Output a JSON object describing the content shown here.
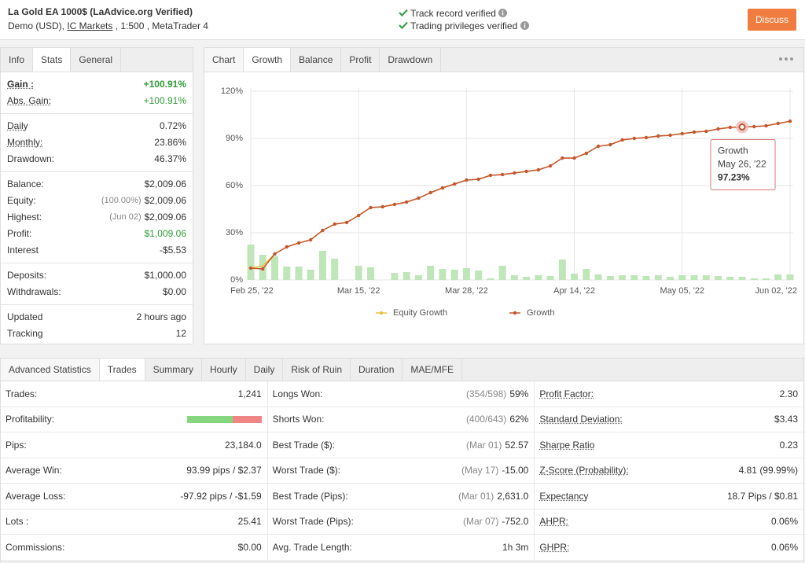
{
  "header": {
    "title": "La Gold EA 1000$ (LaAdvice.org Verified)",
    "account": [
      "Demo (USD), ",
      "IC Markets",
      " , 1:500 , MetaTrader 4"
    ],
    "verifications": [
      "Track record verified",
      "Trading privileges verified"
    ],
    "button": "Discuss"
  },
  "info_panel": {
    "tabs": [
      "Info",
      "Stats",
      "General"
    ],
    "active_tab": 1,
    "groups": [
      [
        {
          "label": "Gain :",
          "value": "+100.91%",
          "underlined": true,
          "bold": true,
          "color": "#2e9b35"
        },
        {
          "label": "Abs. Gain:",
          "value": "+100.91%",
          "underlined": true,
          "color": "#2e9b35"
        }
      ],
      [
        {
          "label": "Daily",
          "value": "0.72%",
          "underlined": true
        },
        {
          "label": "Monthly:",
          "value": "23.86%",
          "underlined": true
        },
        {
          "label": "Drawdown:",
          "value": "46.37%"
        }
      ],
      [
        {
          "label": "Balance:",
          "value": "$2,009.06"
        },
        {
          "label": "Equity:",
          "note": "(100.00%)",
          "value": "$2,009.06"
        },
        {
          "label": "Highest:",
          "note": "(Jun 02)",
          "value": "$2,009.06"
        },
        {
          "label": "Profit:",
          "value": "$1,009.06",
          "color": "#2e9b35"
        },
        {
          "label": "Interest",
          "value": "-$5.53"
        }
      ],
      [
        {
          "label": "Deposits:",
          "value": "$1,000.00"
        },
        {
          "label": "Withdrawals:",
          "value": "$0.00"
        }
      ],
      [
        {
          "label": "Updated",
          "value": "2 hours ago"
        },
        {
          "label": "Tracking",
          "value": "12"
        }
      ]
    ]
  },
  "chart_panel": {
    "title": "Chart",
    "tabs": [
      "Growth",
      "Balance",
      "Profit",
      "Drawdown"
    ],
    "active_tab": 0
  },
  "chart_data": {
    "type": "line",
    "categories": [
      "Feb 25, '22",
      null,
      null,
      null,
      null,
      null,
      null,
      null,
      null,
      "Mar 15, '22",
      null,
      null,
      null,
      null,
      null,
      null,
      null,
      null,
      "Mar 28, '22",
      null,
      null,
      null,
      null,
      null,
      null,
      null,
      null,
      "Apr 14, '22",
      null,
      null,
      null,
      null,
      null,
      null,
      null,
      null,
      "May 05, '22",
      null,
      null,
      null,
      null,
      null,
      null,
      null,
      null,
      "Jun 02, '22"
    ],
    "series": [
      {
        "name": "Equity Growth",
        "color": "#e8c341",
        "values": [
          7.5,
          9,
          16.5,
          21,
          23.5,
          25.5,
          31.5,
          35.5,
          36.5,
          41,
          46,
          46.5,
          48,
          49.5,
          52,
          55.5,
          58.5,
          61,
          63.5,
          64,
          66.5,
          67,
          68,
          69,
          70,
          72.5,
          77.5,
          77.5,
          80.5,
          85,
          86,
          89,
          90,
          90.5,
          91.5,
          92,
          93,
          94,
          94.5,
          96,
          97,
          97.23,
          97.5,
          98,
          99.5,
          100.91
        ]
      },
      {
        "name": "Growth",
        "color": "#c4552f",
        "values": [
          7.5,
          7,
          16.5,
          21,
          23.5,
          25.5,
          31.5,
          35.5,
          36.5,
          41,
          46,
          46.5,
          48,
          49.5,
          52,
          55.5,
          58.5,
          61,
          63.5,
          64,
          66.5,
          67,
          68,
          69,
          70,
          72.5,
          77.5,
          77.5,
          80.5,
          85,
          86,
          89,
          90,
          90.5,
          91.5,
          92,
          93,
          94,
          94.5,
          96,
          97,
          97.23,
          97.5,
          98,
          99.5,
          100.91
        ]
      }
    ],
    "bars": {
      "color": "#bfe6b8",
      "values": [
        22.5,
        16,
        15,
        8.5,
        8.5,
        6.5,
        18.5,
        13.5,
        0,
        9,
        8,
        0,
        4.5,
        5,
        3,
        9,
        7,
        6.5,
        7.5,
        6,
        1,
        9,
        3,
        2,
        3,
        2.5,
        13,
        4,
        7,
        3.5,
        2.5,
        3,
        3,
        2.5,
        3,
        2,
        3,
        3,
        3,
        2.5,
        2,
        2,
        1,
        1,
        3.5,
        3.5
      ]
    },
    "ylim": [
      0,
      120
    ],
    "yticks": [
      {
        "value": 0,
        "label": "0%"
      },
      {
        "value": 30,
        "label": "30%"
      },
      {
        "value": 60,
        "label": "60%"
      },
      {
        "value": 90,
        "label": "90%"
      },
      {
        "value": 120,
        "label": "120%"
      }
    ],
    "grid": true,
    "tooltip": {
      "date": "May 26, '22",
      "label": "97.23%"
    }
  },
  "advanced_statistics": {
    "title": "Advanced Statistics",
    "tabs": [
      "Trades",
      "Summary",
      "Hourly",
      "Daily",
      "Risk of Ruin",
      "Duration",
      "MAE/MFE"
    ],
    "active_tab": 0,
    "rows": [
      [
        {
          "label": "Trades:",
          "value": "1,241"
        },
        {
          "label": "Longs Won:",
          "note": "(354/598)",
          "value": "59%"
        },
        {
          "label": "Profit Factor:",
          "value": "2.30",
          "underlined": true
        }
      ],
      [
        {
          "label": "Profitability:",
          "won_percent": 61,
          "colors": [
            "#86d67f",
            "#f08585"
          ]
        },
        {
          "label": "Shorts Won:",
          "note": "(400/643)",
          "value": "62%"
        },
        {
          "label": "Standard Deviation:",
          "value": "$3.43",
          "underlined": true
        }
      ],
      [
        {
          "label": "Pips:",
          "value": "23,184.0"
        },
        {
          "label": "Best Trade ($):",
          "note": "(Mar 01)",
          "value": "52.57"
        },
        {
          "label": "Sharpe Ratio",
          "value": "0.23",
          "underlined": true
        }
      ],
      [
        {
          "label": "Average Win:",
          "value": "93.99 pips / $2.37"
        },
        {
          "label": "Worst Trade ($):",
          "note": "(May 17)",
          "value": "-15.00"
        },
        {
          "label": "Z-Score (Probability):",
          "value": "4.81 (99.99%)",
          "underlined": true
        }
      ],
      [
        {
          "label": "Average Loss:",
          "value": "-97.92 pips / -$1.59"
        },
        {
          "label": "Best Trade (Pips):",
          "note": "(Mar 01)",
          "value": "2,631.0"
        },
        {
          "label": "Expectancy",
          "value": "18.7 Pips / $0.81",
          "underlined": true
        }
      ],
      [
        {
          "label": "Lots :",
          "value": "25.41"
        },
        {
          "label": "Worst Trade (Pips):",
          "note": "(Mar 07)",
          "value": "-752.0"
        },
        {
          "label": "AHPR:",
          "value": "0.06%",
          "underlined": true
        }
      ],
      [
        {
          "label": "Commissions:",
          "value": "$0.00"
        },
        {
          "label": "Avg. Trade Length:",
          "value": "1h 3m"
        },
        {
          "label": "GHPR:",
          "value": "0.06%",
          "underlined": true
        }
      ]
    ]
  }
}
